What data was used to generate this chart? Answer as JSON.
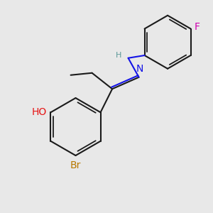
{
  "background_color": "#e8e8e8",
  "bond_color": "#1a1a1a",
  "bond_width": 1.5,
  "atom_colors": {
    "N": "#1414e6",
    "H_N": "#5a9898",
    "O": "#e61414",
    "Br": "#b87800",
    "F": "#d000b0"
  },
  "font_size_atoms": 10,
  "font_size_H": 8,
  "fig_bg": "#e8e8e8",
  "xlim": [
    0,
    10
  ],
  "ylim": [
    0,
    10
  ]
}
